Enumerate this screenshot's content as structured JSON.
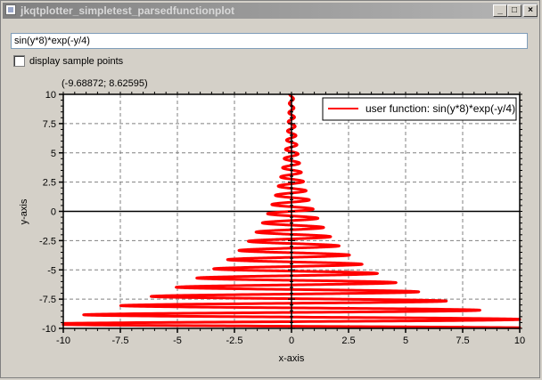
{
  "window": {
    "title": "jkqtplotter_simpletest_parsedfunctionplot",
    "buttons": [
      "_",
      "□",
      "×"
    ]
  },
  "expression": {
    "value": "sin(y*8)*exp(-y/4)"
  },
  "sample_points": {
    "label": "display sample points",
    "checked": false
  },
  "mouse_coords": "(-9.68872; 8.62595)",
  "chart_data": {
    "type": "line",
    "xlabel": "x-axis",
    "ylabel": "y-axis",
    "xlim": [
      -10,
      10
    ],
    "ylim": [
      -10,
      10
    ],
    "xticks": [
      "-10",
      "-7.5",
      "-5",
      "-2.5",
      "0",
      "2.5",
      "5",
      "7.5",
      "10"
    ],
    "yticks": [
      "10",
      "7.5",
      "5",
      "2.5",
      "0",
      "-2.5",
      "-5",
      "-7.5",
      "-10"
    ],
    "grid": true,
    "legend_position": "top-right",
    "series": [
      {
        "name": "user function: sin(y*8)*exp(-y/4)",
        "color": "#ff0000",
        "function": "x = sin(y*8)*exp(-y/4)"
      }
    ]
  }
}
